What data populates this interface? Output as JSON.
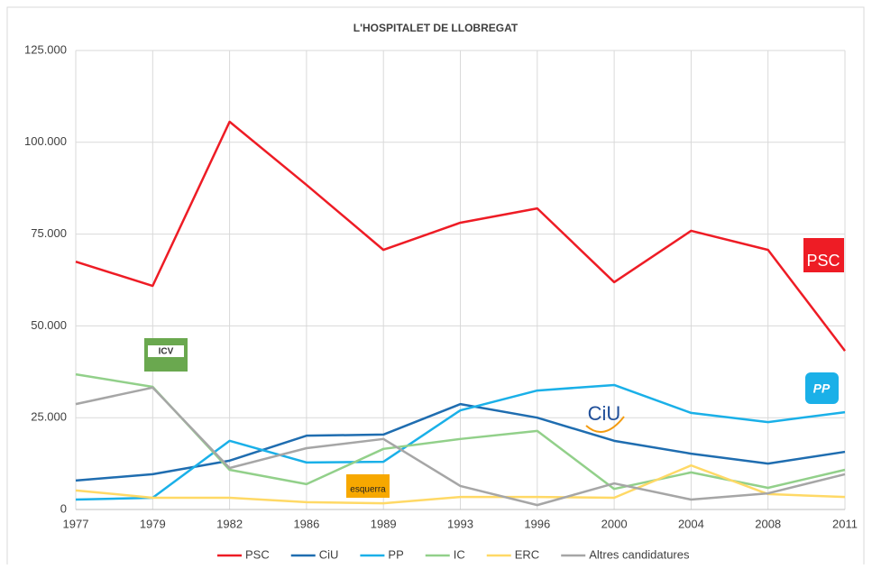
{
  "chart_data": {
    "type": "line",
    "title": "L'HOSPITALET DE LLOBREGAT",
    "categories": [
      "1977",
      "1979",
      "1982",
      "1986",
      "1989",
      "1993",
      "1996",
      "2000",
      "2004",
      "2008",
      "2011"
    ],
    "series": [
      {
        "name": "PSC",
        "color": "#ee1c25",
        "values": [
          67500,
          60900,
          105600,
          88400,
          70700,
          78100,
          82000,
          61900,
          75900,
          70700,
          43200
        ]
      },
      {
        "name": "CiU",
        "color": "#1f6db0",
        "values": [
          7900,
          9600,
          13300,
          20100,
          20400,
          28700,
          25000,
          18700,
          15200,
          12500,
          15700
        ]
      },
      {
        "name": "PP",
        "color": "#1ab0e8",
        "values": [
          2700,
          3200,
          18700,
          12800,
          13000,
          27000,
          32400,
          33900,
          26300,
          23800,
          26500
        ]
      },
      {
        "name": "IC",
        "color": "#92d08a",
        "values": [
          36800,
          33400,
          10800,
          6900,
          16500,
          19200,
          21400,
          5600,
          10100,
          5900,
          10800
        ]
      },
      {
        "name": "ERC",
        "color": "#ffd966",
        "values": [
          5200,
          3200,
          3200,
          2000,
          1700,
          3400,
          3400,
          3200,
          12000,
          4200,
          3400
        ]
      },
      {
        "name": "Altres candidatures",
        "color": "#a6a6a6",
        "values": [
          28700,
          33200,
          11300,
          16700,
          19200,
          6400,
          1200,
          7100,
          2700,
          4400,
          9600
        ]
      }
    ],
    "ylim": [
      0,
      125000
    ],
    "yticks": [
      0,
      {
        "value": 25000,
        "label": "25.000"
      },
      {
        "value": 50000,
        "label": "50.000"
      },
      {
        "value": 75000,
        "label": "75.000"
      },
      {
        "value": 100000,
        "label": "100.000"
      },
      {
        "value": 125000,
        "label": "125.000"
      }
    ],
    "grid": true,
    "legend": "bottom",
    "annotations": [
      "PSC",
      "ICV",
      "CiU",
      "PP",
      "esquerra"
    ]
  }
}
